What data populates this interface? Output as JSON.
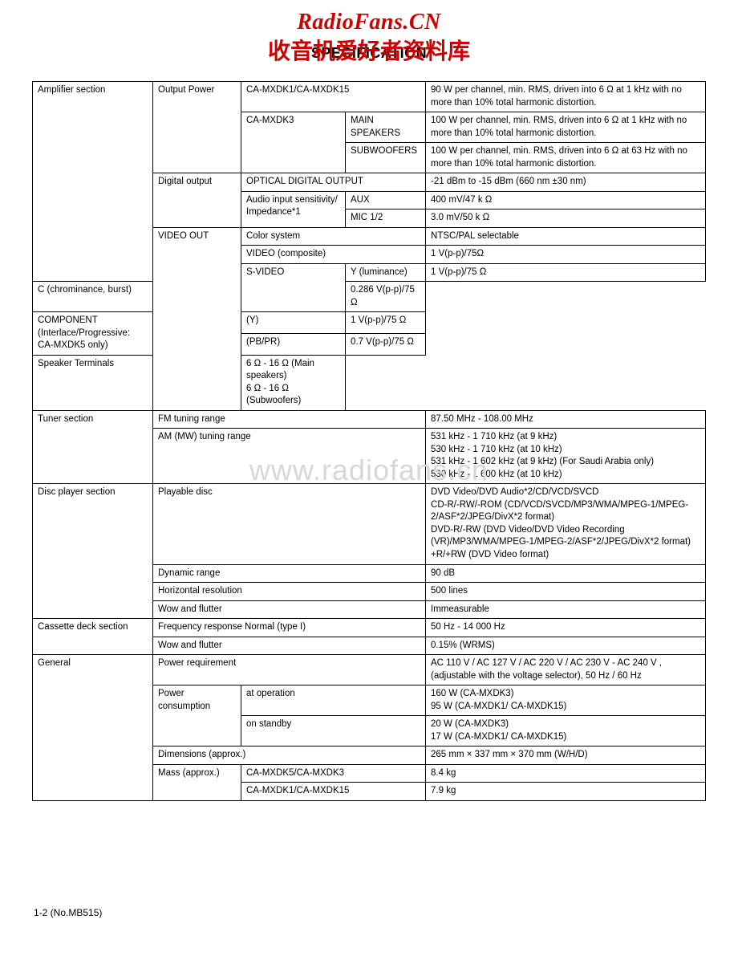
{
  "watermark": {
    "line1": "RadioFans.CN",
    "line2": "收音机爱好者资料库",
    "mid": "www.radiofans.cn"
  },
  "title": "SPECIFICATION",
  "footer": "1-2 (No.MB515)",
  "rows": [
    {
      "c1": "Amplifier section",
      "c2": "Output Power",
      "c3": "CA-MXDK1/CA-MXDK15",
      "c4": "",
      "c5": "90 W per channel, min. RMS, driven into 6 Ω at 1 kHz with no more than 10% total harmonic distortion.",
      "span34": true,
      "c1rs": 9,
      "c2rs": 3
    },
    {
      "c3": "CA-MXDK3",
      "c4": "MAIN SPEAKERS",
      "c5": "100 W per channel, min. RMS, driven into 6 Ω at 1 kHz with no more than 10% total harmonic distortion.",
      "c3rs": 2
    },
    {
      "c4": "SUBWOOFERS",
      "c5": "100 W per channel, min. RMS, driven into 6 Ω at 63 Hz with no more than 10% total harmonic distortion."
    },
    {
      "c2": "Digital output",
      "c3": "OPTICAL DIGITAL OUTPUT",
      "c5": "-21 dBm to -15 dBm (660 nm ±30 nm)",
      "span34": true,
      "c2rs": 3
    },
    {
      "c3": "Audio input sensitivity/ Impedance*1",
      "c4": "AUX",
      "c5": "400 mV/47 k Ω",
      "c3rs": 2
    },
    {
      "c4": "MIC 1/2",
      "c5": "3.0 mV/50 k Ω"
    },
    {
      "c2": "VIDEO OUT",
      "c3": "Color system",
      "c5": "NTSC/PAL selectable",
      "span34": true,
      "c2rs": 7
    },
    {
      "c3": "VIDEO (composite)",
      "c5": "1 V(p-p)/75Ω",
      "span34": true
    },
    {
      "c3": "S-VIDEO",
      "c4": "Y (luminance)",
      "c5": "1 V(p-p)/75 Ω",
      "c3rs": 2
    },
    {
      "c4": "C (chrominance, burst)",
      "c5": "0.286 V(p-p)/75 Ω",
      "c1skip": true
    },
    {
      "c3": "COMPONENT\n(Interlace/Progressive:\n CA-MXDK5 only)",
      "c4": "(Y)",
      "c5": "1 V(p-p)/75 Ω",
      "c3rs": 2,
      "c1skip": true
    },
    {
      "c4": "(PB/PR)",
      "c5": "0.7 V(p-p)/75 Ω",
      "c1skip": true
    },
    {
      "c3": "Speaker Terminals",
      "c5": "6 Ω - 16 Ω (Main speakers)\n6 Ω - 16 Ω (Subwoofers)",
      "span34": true,
      "c1skip": true
    },
    {
      "c1": "Tuner section",
      "c2": "FM tuning range",
      "c5": "87.50 MHz - 108.00 MHz",
      "span234": true,
      "c1rs": 2
    },
    {
      "c2": "AM (MW) tuning range",
      "c5": "531 kHz - 1 710 kHz (at 9 kHz)\n530 kHz - 1 710 kHz (at 10 kHz)\n531 kHz - 1 602 kHz (at 9 kHz) (For Saudi Arabia only)\n530 kHz - 1 600 kHz (at 10 kHz)",
      "span234": true
    },
    {
      "c1": "Disc player section",
      "c2": "Playable disc",
      "c5": "DVD Video/DVD Audio*2/CD/VCD/SVCD\nCD-R/-RW/-ROM (CD/VCD/SVCD/MP3/WMA/MPEG-1/MPEG-2/ASF*2/JPEG/DivX*2 format)\nDVD-R/-RW (DVD Video/DVD Video Recording (VR)/MP3/WMA/MPEG-1/MPEG-2/ASF*2/JPEG/DivX*2 format)\n+R/+RW (DVD Video format)",
      "span234": true,
      "c1rs": 4
    },
    {
      "c2": "Dynamic range",
      "c5": "90 dB",
      "span234": true
    },
    {
      "c2": "Horizontal resolution",
      "c5": "500 lines",
      "span234": true
    },
    {
      "c2": "Wow and flutter",
      "c5": "Immeasurable",
      "span234": true
    },
    {
      "c1": "Cassette deck section",
      "c2": "Frequency response Normal (type I)",
      "c5": "50 Hz - 14 000 Hz",
      "span234": true,
      "c1rs": 2
    },
    {
      "c2": "Wow and flutter",
      "c5": "0.15% (WRMS)",
      "span234": true
    },
    {
      "c1": "General",
      "c2": "Power requirement",
      "c5": "AC 110 V / AC 127 V / AC 220 V / AC 230 V - AC 240 V , (adjustable with the voltage selector), 50 Hz / 60 Hz",
      "span234": true,
      "c1rs": 6
    },
    {
      "c2": "Power consumption",
      "c3": "at operation",
      "c5": "160 W (CA-MXDK3)\n95 W (CA-MXDK1/ CA-MXDK15)",
      "span34": true,
      "c2rs": 2
    },
    {
      "c3": "on standby",
      "c5": "20 W (CA-MXDK3)\n17 W (CA-MXDK1/ CA-MXDK15)",
      "span34": true
    },
    {
      "c2": "Dimensions (approx.)",
      "c5": "265 mm × 337 mm × 370 mm (W/H/D)",
      "span234": true
    },
    {
      "c2": "Mass (approx.)",
      "c3": "CA-MXDK5/CA-MXDK3",
      "c5": "8.4 kg",
      "span34": true,
      "c2rs": 2
    },
    {
      "c3": "CA-MXDK1/CA-MXDK15",
      "c5": "7.9 kg",
      "span34": true
    }
  ]
}
